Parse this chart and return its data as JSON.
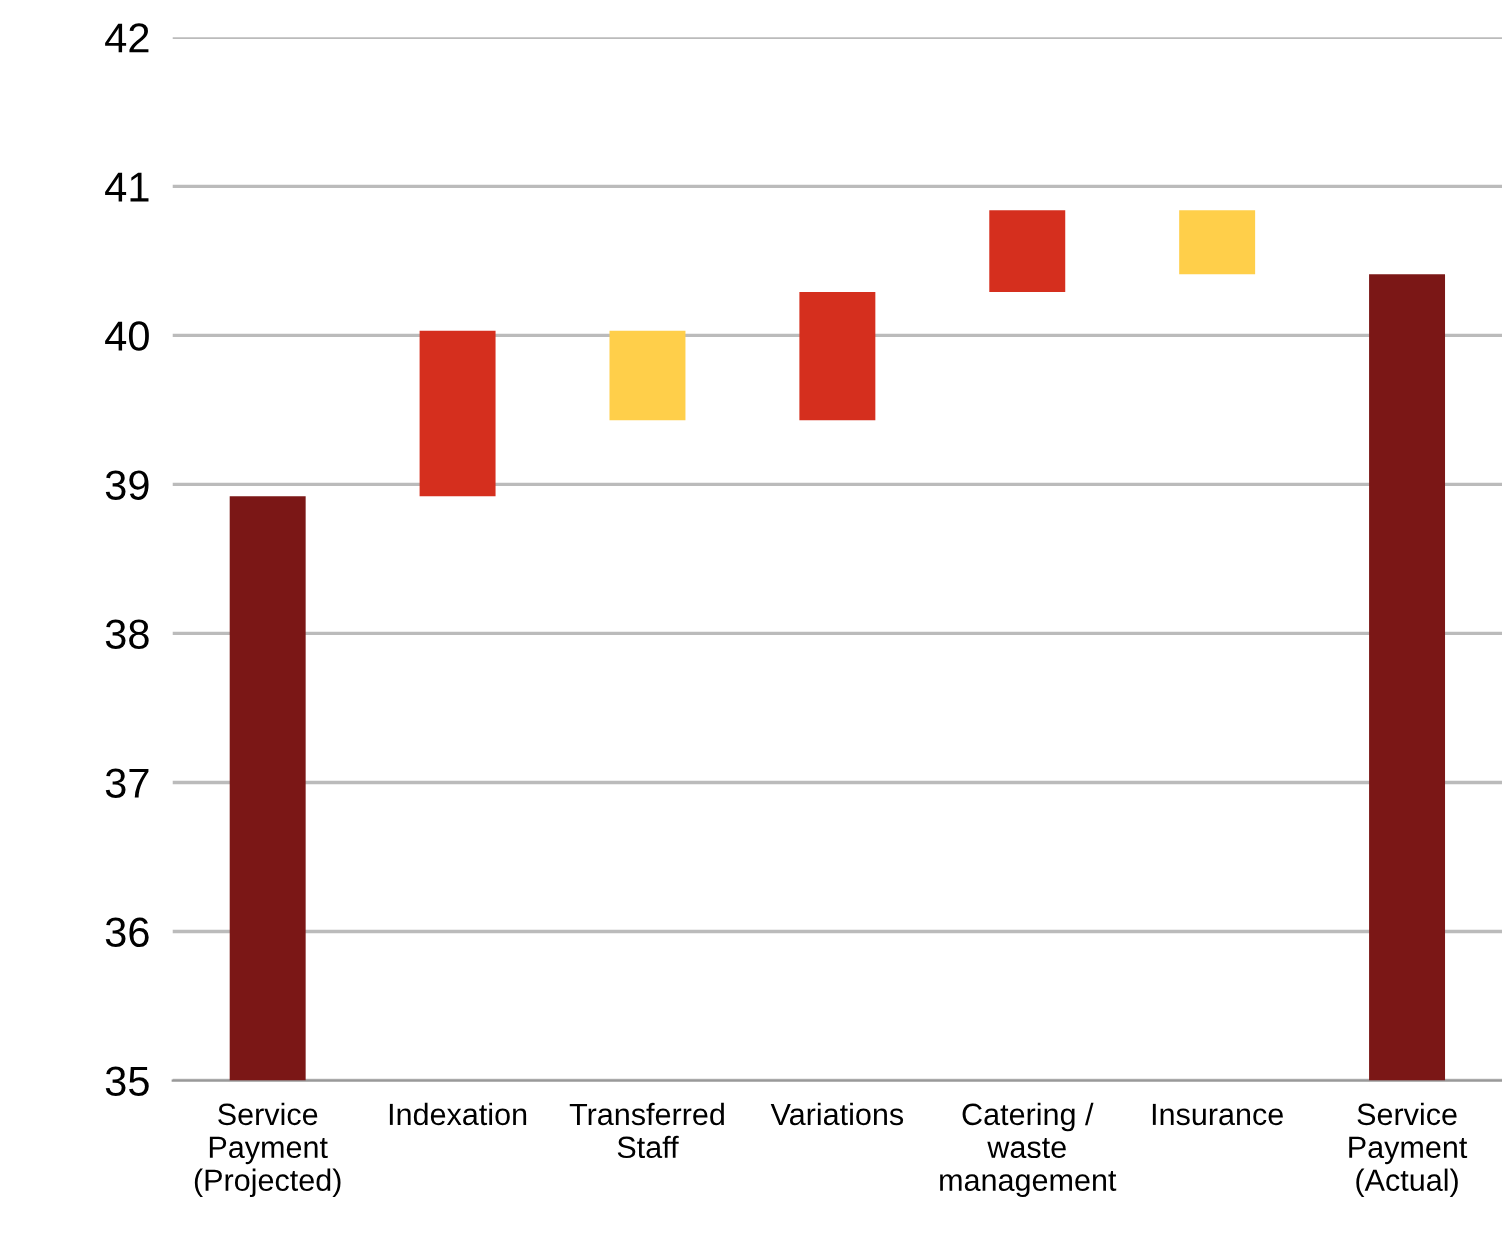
{
  "chart_data": {
    "type": "bar",
    "categories": [
      "Service\nPayment\n(Projected)",
      "Indexation",
      "Transferred\nStaff",
      "Variations",
      "Catering /\nwaste\nmanagement",
      "Insurance",
      "Service\nPayment\n(Actual)"
    ],
    "values": [
      3.92,
      1.11,
      0.6,
      0.86,
      0.55,
      0.43,
      5.41
    ],
    "base": [
      35,
      38.92,
      39.43,
      39.43,
      40.29,
      40.41,
      35
    ],
    "colors": [
      "#7b1716",
      "#d52f1e",
      "#ffcf4a",
      "#d52f1e",
      "#d52f1e",
      "#ffcf4a",
      "#7b1716"
    ],
    "ylim": [
      35,
      42
    ],
    "yticks": [
      35,
      36,
      37,
      38,
      39,
      40,
      41,
      42
    ],
    "grid": "y"
  }
}
